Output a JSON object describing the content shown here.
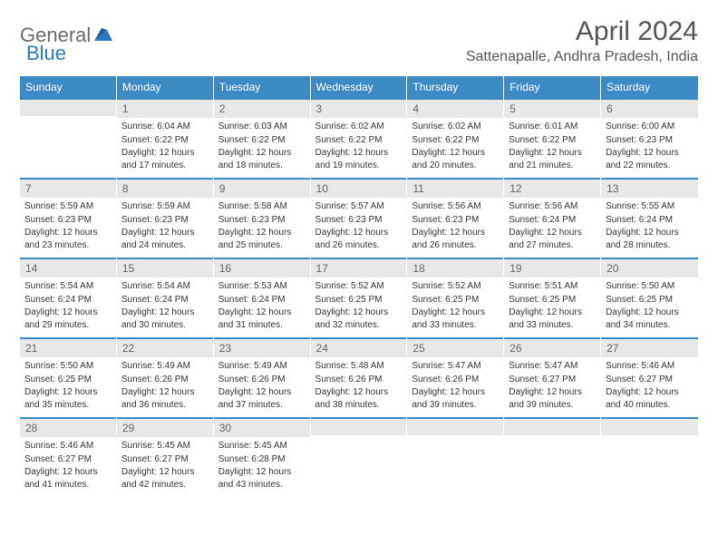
{
  "logo": {
    "text1": "General",
    "text2": "Blue"
  },
  "title": "April 2024",
  "location": "Sattenapalle, Andhra Pradesh, India",
  "colors": {
    "header_bg": "#3b8ac4",
    "header_fg": "#ffffff",
    "daynum_bg": "#e8e8e8",
    "daynum_fg": "#666666",
    "row_border": "#3b8ac4",
    "text": "#333333",
    "logo_gray": "#6b6b6b",
    "logo_blue": "#2a7ac0"
  },
  "weekdays": [
    "Sunday",
    "Monday",
    "Tuesday",
    "Wednesday",
    "Thursday",
    "Friday",
    "Saturday"
  ],
  "start_offset": 1,
  "days": [
    {
      "n": 1,
      "sr": "6:04 AM",
      "ss": "6:22 PM",
      "dl": "12 hours and 17 minutes."
    },
    {
      "n": 2,
      "sr": "6:03 AM",
      "ss": "6:22 PM",
      "dl": "12 hours and 18 minutes."
    },
    {
      "n": 3,
      "sr": "6:02 AM",
      "ss": "6:22 PM",
      "dl": "12 hours and 19 minutes."
    },
    {
      "n": 4,
      "sr": "6:02 AM",
      "ss": "6:22 PM",
      "dl": "12 hours and 20 minutes."
    },
    {
      "n": 5,
      "sr": "6:01 AM",
      "ss": "6:22 PM",
      "dl": "12 hours and 21 minutes."
    },
    {
      "n": 6,
      "sr": "6:00 AM",
      "ss": "6:23 PM",
      "dl": "12 hours and 22 minutes."
    },
    {
      "n": 7,
      "sr": "5:59 AM",
      "ss": "6:23 PM",
      "dl": "12 hours and 23 minutes."
    },
    {
      "n": 8,
      "sr": "5:59 AM",
      "ss": "6:23 PM",
      "dl": "12 hours and 24 minutes."
    },
    {
      "n": 9,
      "sr": "5:58 AM",
      "ss": "6:23 PM",
      "dl": "12 hours and 25 minutes."
    },
    {
      "n": 10,
      "sr": "5:57 AM",
      "ss": "6:23 PM",
      "dl": "12 hours and 26 minutes."
    },
    {
      "n": 11,
      "sr": "5:56 AM",
      "ss": "6:23 PM",
      "dl": "12 hours and 26 minutes."
    },
    {
      "n": 12,
      "sr": "5:56 AM",
      "ss": "6:24 PM",
      "dl": "12 hours and 27 minutes."
    },
    {
      "n": 13,
      "sr": "5:55 AM",
      "ss": "6:24 PM",
      "dl": "12 hours and 28 minutes."
    },
    {
      "n": 14,
      "sr": "5:54 AM",
      "ss": "6:24 PM",
      "dl": "12 hours and 29 minutes."
    },
    {
      "n": 15,
      "sr": "5:54 AM",
      "ss": "6:24 PM",
      "dl": "12 hours and 30 minutes."
    },
    {
      "n": 16,
      "sr": "5:53 AM",
      "ss": "6:24 PM",
      "dl": "12 hours and 31 minutes."
    },
    {
      "n": 17,
      "sr": "5:52 AM",
      "ss": "6:25 PM",
      "dl": "12 hours and 32 minutes."
    },
    {
      "n": 18,
      "sr": "5:52 AM",
      "ss": "6:25 PM",
      "dl": "12 hours and 33 minutes."
    },
    {
      "n": 19,
      "sr": "5:51 AM",
      "ss": "6:25 PM",
      "dl": "12 hours and 33 minutes."
    },
    {
      "n": 20,
      "sr": "5:50 AM",
      "ss": "6:25 PM",
      "dl": "12 hours and 34 minutes."
    },
    {
      "n": 21,
      "sr": "5:50 AM",
      "ss": "6:25 PM",
      "dl": "12 hours and 35 minutes."
    },
    {
      "n": 22,
      "sr": "5:49 AM",
      "ss": "6:26 PM",
      "dl": "12 hours and 36 minutes."
    },
    {
      "n": 23,
      "sr": "5:49 AM",
      "ss": "6:26 PM",
      "dl": "12 hours and 37 minutes."
    },
    {
      "n": 24,
      "sr": "5:48 AM",
      "ss": "6:26 PM",
      "dl": "12 hours and 38 minutes."
    },
    {
      "n": 25,
      "sr": "5:47 AM",
      "ss": "6:26 PM",
      "dl": "12 hours and 39 minutes."
    },
    {
      "n": 26,
      "sr": "5:47 AM",
      "ss": "6:27 PM",
      "dl": "12 hours and 39 minutes."
    },
    {
      "n": 27,
      "sr": "5:46 AM",
      "ss": "6:27 PM",
      "dl": "12 hours and 40 minutes."
    },
    {
      "n": 28,
      "sr": "5:46 AM",
      "ss": "6:27 PM",
      "dl": "12 hours and 41 minutes."
    },
    {
      "n": 29,
      "sr": "5:45 AM",
      "ss": "6:27 PM",
      "dl": "12 hours and 42 minutes."
    },
    {
      "n": 30,
      "sr": "5:45 AM",
      "ss": "6:28 PM",
      "dl": "12 hours and 43 minutes."
    }
  ],
  "labels": {
    "sunrise": "Sunrise:",
    "sunset": "Sunset:",
    "daylight": "Daylight:"
  }
}
